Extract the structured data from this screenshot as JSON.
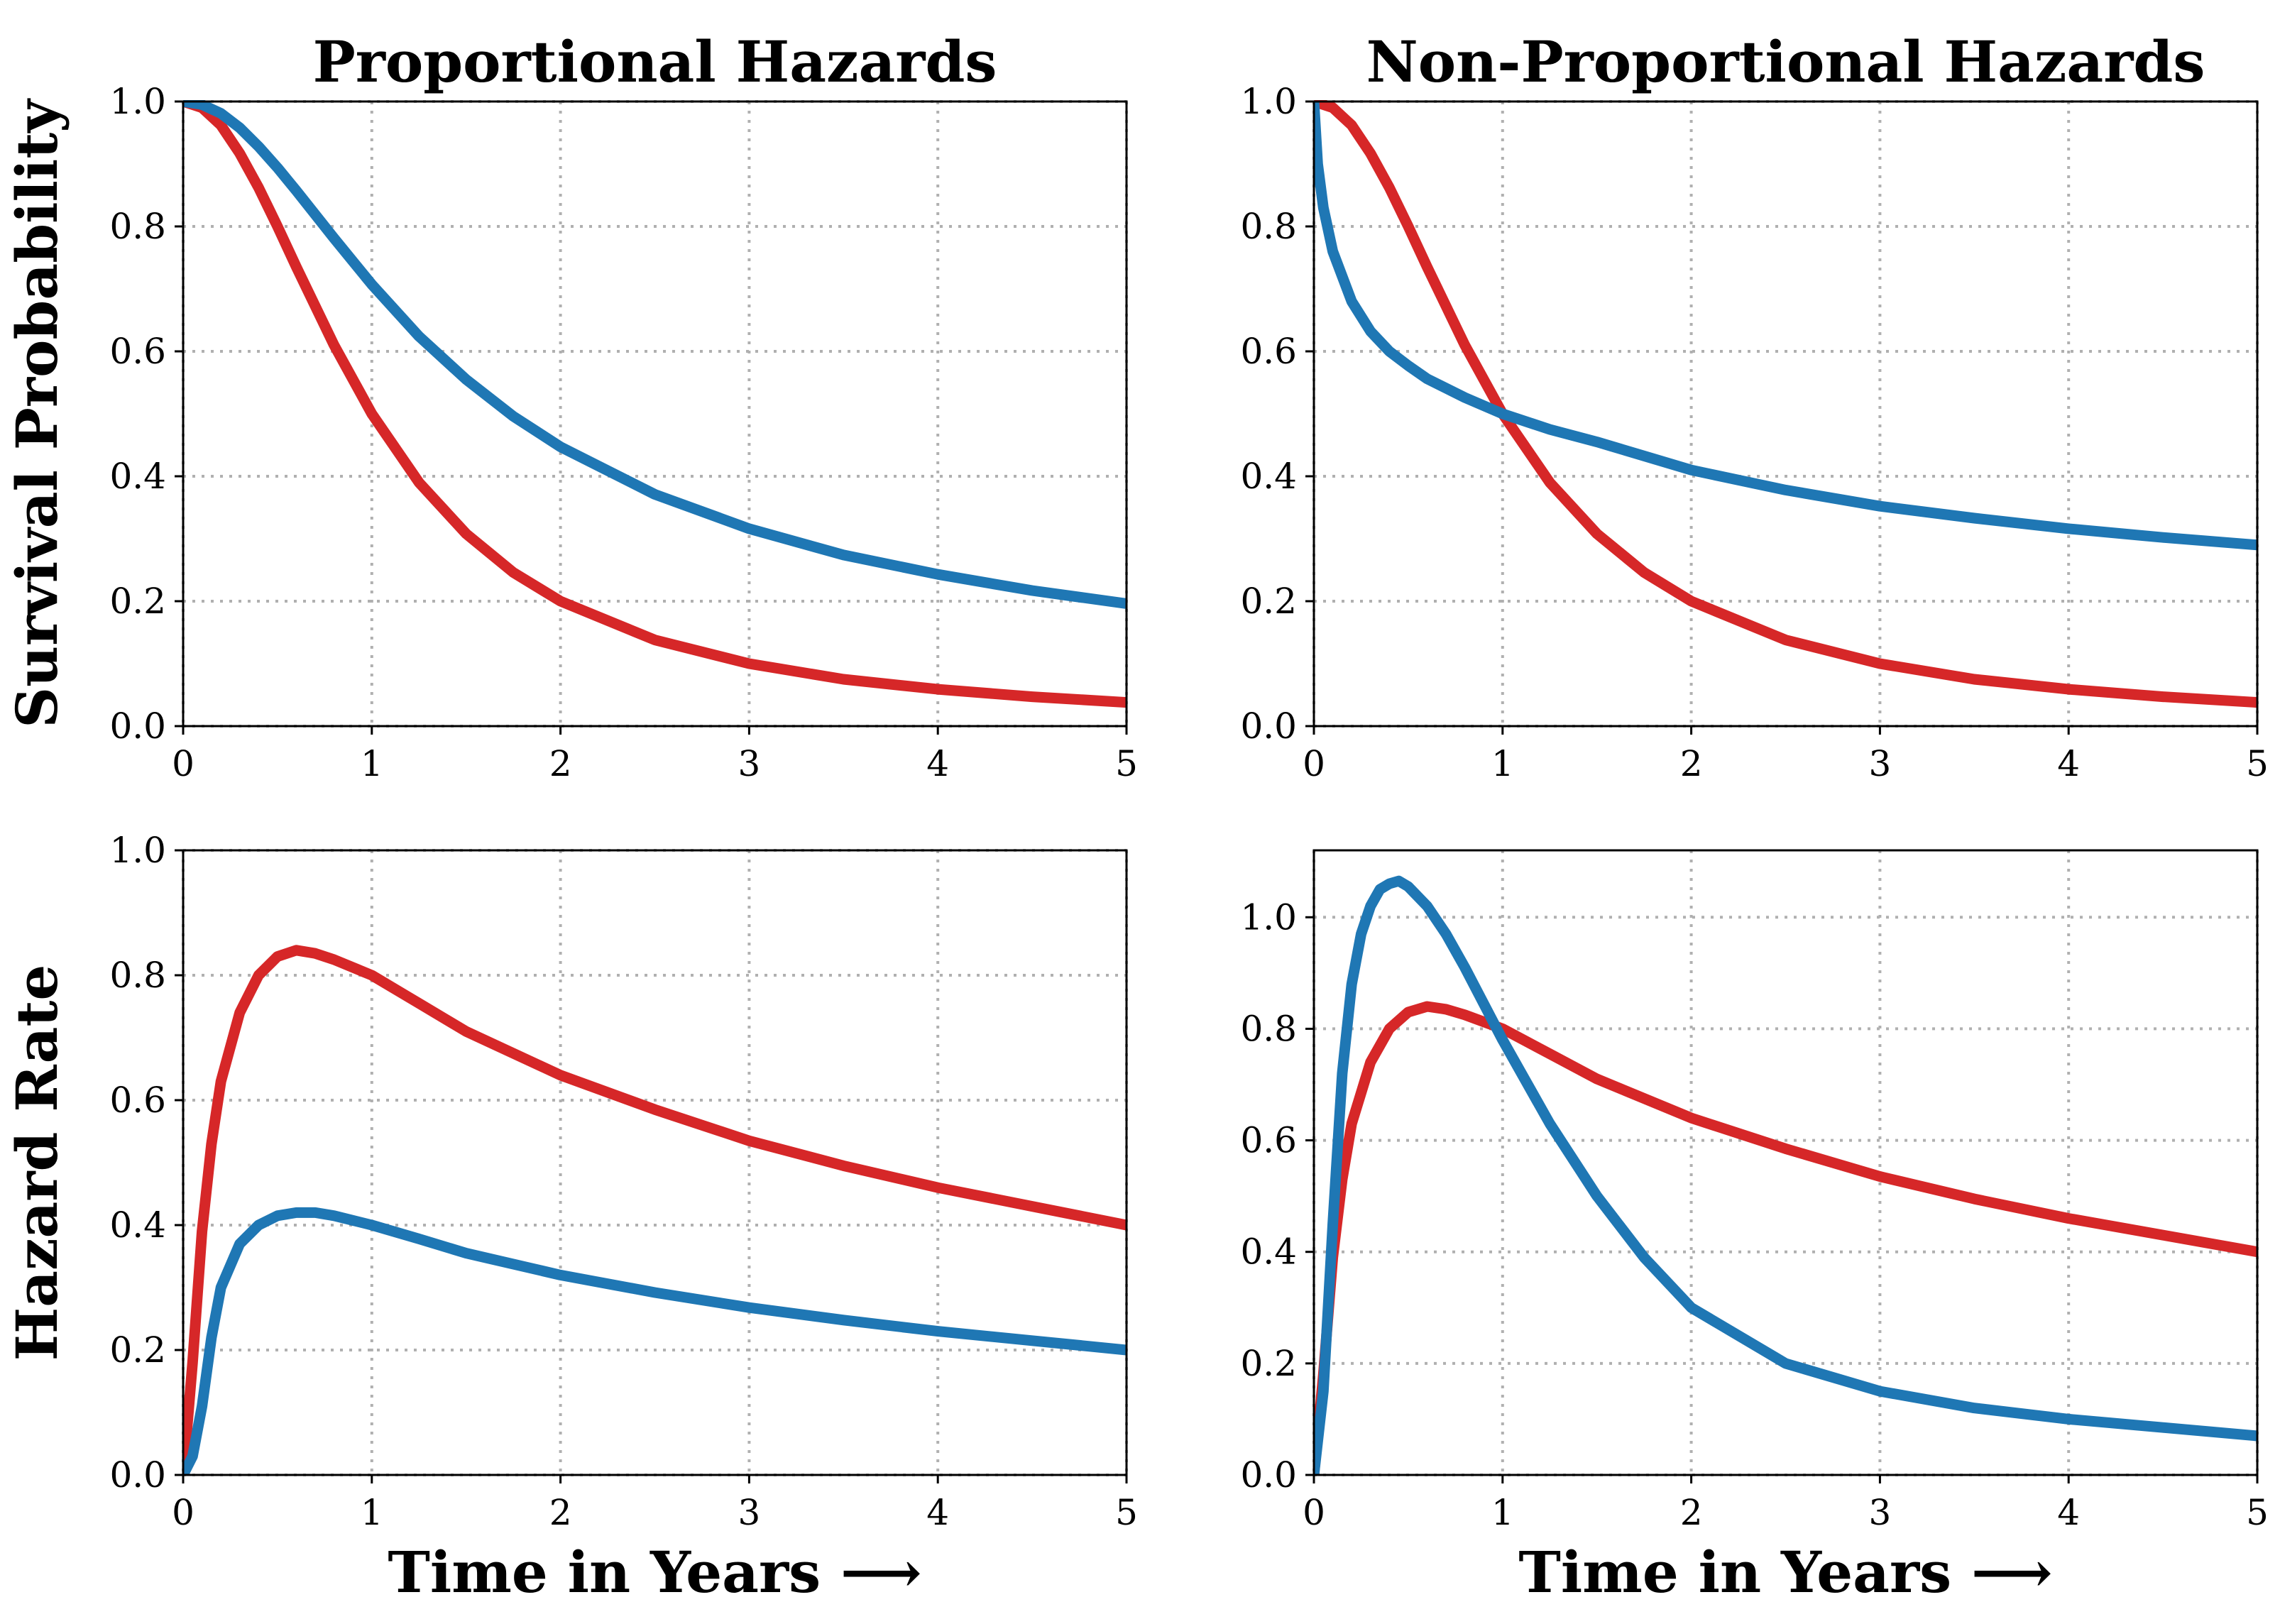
{
  "colors": {
    "red": "#d62728",
    "blue": "#1f77b4",
    "grid": "#b0b0b0"
  },
  "figure": {
    "xlabel": "Time in Years ⟶"
  },
  "chart_data": [
    {
      "id": "ph-survival",
      "type": "line",
      "title": "Proportional Hazards",
      "xlabel": "",
      "ylabel": "Survival Probability",
      "xlim": [
        0,
        5
      ],
      "ylim": [
        0,
        1.0
      ],
      "xticks": [
        0,
        1,
        2,
        3,
        4,
        5
      ],
      "yticks": [
        0.0,
        0.2,
        0.4,
        0.6,
        0.8,
        1.0
      ],
      "xtick_labels": [
        "0",
        "1",
        "2",
        "3",
        "4",
        "5"
      ],
      "ytick_labels": [
        "0.0",
        "0.2",
        "0.4",
        "0.6",
        "0.8",
        "1.0"
      ],
      "grid": true,
      "series": [
        {
          "name": "red",
          "color": "#d62728",
          "x": [
            0,
            0.1,
            0.2,
            0.3,
            0.4,
            0.5,
            0.6,
            0.8,
            1.0,
            1.25,
            1.5,
            1.75,
            2.0,
            2.5,
            3.0,
            3.5,
            4.0,
            4.5,
            5.0
          ],
          "y": [
            1.0,
            0.99,
            0.962,
            0.917,
            0.862,
            0.8,
            0.735,
            0.61,
            0.5,
            0.39,
            0.308,
            0.246,
            0.2,
            0.138,
            0.1,
            0.075,
            0.059,
            0.047,
            0.038
          ]
        },
        {
          "name": "blue",
          "color": "#1f77b4",
          "x": [
            0,
            0.1,
            0.2,
            0.3,
            0.4,
            0.5,
            0.6,
            0.8,
            1.0,
            1.25,
            1.5,
            1.75,
            2.0,
            2.5,
            3.0,
            3.5,
            4.0,
            4.5,
            5.0
          ],
          "y": [
            1.0,
            0.995,
            0.981,
            0.958,
            0.928,
            0.894,
            0.857,
            0.781,
            0.707,
            0.624,
            0.555,
            0.496,
            0.447,
            0.371,
            0.316,
            0.274,
            0.243,
            0.217,
            0.196
          ]
        }
      ]
    },
    {
      "id": "nph-survival",
      "type": "line",
      "title": "Non-Proportional Hazards",
      "xlabel": "",
      "ylabel": "",
      "xlim": [
        0,
        5
      ],
      "ylim": [
        0,
        1.0
      ],
      "xticks": [
        0,
        1,
        2,
        3,
        4,
        5
      ],
      "yticks": [
        0.0,
        0.2,
        0.4,
        0.6,
        0.8,
        1.0
      ],
      "xtick_labels": [
        "0",
        "1",
        "2",
        "3",
        "4",
        "5"
      ],
      "ytick_labels": [
        "0.0",
        "0.2",
        "0.4",
        "0.6",
        "0.8",
        "1.0"
      ],
      "grid": true,
      "series": [
        {
          "name": "red",
          "color": "#d62728",
          "x": [
            0,
            0.1,
            0.2,
            0.3,
            0.4,
            0.5,
            0.6,
            0.8,
            1.0,
            1.25,
            1.5,
            1.75,
            2.0,
            2.5,
            3.0,
            3.5,
            4.0,
            4.5,
            5.0
          ],
          "y": [
            1.0,
            0.99,
            0.962,
            0.917,
            0.862,
            0.8,
            0.735,
            0.61,
            0.5,
            0.39,
            0.308,
            0.246,
            0.2,
            0.138,
            0.1,
            0.075,
            0.059,
            0.047,
            0.038
          ]
        },
        {
          "name": "blue",
          "color": "#1f77b4",
          "x": [
            0,
            0.02,
            0.05,
            0.1,
            0.2,
            0.3,
            0.4,
            0.5,
            0.6,
            0.8,
            1.0,
            1.25,
            1.5,
            2.0,
            2.5,
            3.0,
            3.5,
            4.0,
            4.5,
            5.0
          ],
          "y": [
            1.0,
            0.9,
            0.83,
            0.76,
            0.68,
            0.632,
            0.6,
            0.577,
            0.556,
            0.526,
            0.5,
            0.475,
            0.455,
            0.41,
            0.378,
            0.352,
            0.333,
            0.316,
            0.302,
            0.29
          ]
        }
      ]
    },
    {
      "id": "ph-hazard",
      "type": "line",
      "title": "",
      "xlabel": "Time in Years ⟶",
      "ylabel": "Hazard Rate",
      "xlim": [
        0,
        5
      ],
      "ylim": [
        0,
        1.0
      ],
      "xticks": [
        0,
        1,
        2,
        3,
        4,
        5
      ],
      "yticks": [
        0.0,
        0.2,
        0.4,
        0.6,
        0.8,
        1.0
      ],
      "xtick_labels": [
        "0",
        "1",
        "2",
        "3",
        "4",
        "5"
      ],
      "ytick_labels": [
        "0.0",
        "0.2",
        "0.4",
        "0.6",
        "0.8",
        "1.0"
      ],
      "grid": true,
      "series": [
        {
          "name": "red",
          "color": "#d62728",
          "x": [
            0,
            0.05,
            0.1,
            0.15,
            0.2,
            0.3,
            0.4,
            0.5,
            0.6,
            0.7,
            0.8,
            1.0,
            1.25,
            1.5,
            2.0,
            2.5,
            3.0,
            3.5,
            4.0,
            4.5,
            5.0
          ],
          "y": [
            0.0,
            0.18,
            0.39,
            0.53,
            0.63,
            0.74,
            0.8,
            0.83,
            0.84,
            0.835,
            0.825,
            0.8,
            0.755,
            0.71,
            0.64,
            0.585,
            0.535,
            0.495,
            0.46,
            0.43,
            0.4
          ]
        },
        {
          "name": "blue",
          "color": "#1f77b4",
          "x": [
            0,
            0.05,
            0.1,
            0.15,
            0.2,
            0.3,
            0.4,
            0.5,
            0.6,
            0.7,
            0.8,
            1.0,
            1.25,
            1.5,
            2.0,
            2.5,
            3.0,
            3.5,
            4.0,
            4.5,
            5.0
          ],
          "y": [
            0.0,
            0.03,
            0.11,
            0.22,
            0.3,
            0.37,
            0.4,
            0.415,
            0.42,
            0.42,
            0.415,
            0.4,
            0.378,
            0.355,
            0.32,
            0.292,
            0.268,
            0.248,
            0.23,
            0.215,
            0.2
          ]
        }
      ]
    },
    {
      "id": "nph-hazard",
      "type": "line",
      "title": "",
      "xlabel": "Time in Years ⟶",
      "ylabel": "",
      "xlim": [
        0,
        5
      ],
      "ylim": [
        0,
        1.12
      ],
      "xticks": [
        0,
        1,
        2,
        3,
        4,
        5
      ],
      "yticks": [
        0.0,
        0.2,
        0.4,
        0.6,
        0.8,
        1.0
      ],
      "xtick_labels": [
        "0",
        "1",
        "2",
        "3",
        "4",
        "5"
      ],
      "ytick_labels": [
        "0.0",
        "0.2",
        "0.4",
        "0.6",
        "0.8",
        "1.0"
      ],
      "grid": true,
      "series": [
        {
          "name": "red",
          "color": "#d62728",
          "x": [
            0,
            0.05,
            0.1,
            0.15,
            0.2,
            0.3,
            0.4,
            0.5,
            0.6,
            0.7,
            0.8,
            1.0,
            1.25,
            1.5,
            2.0,
            2.5,
            3.0,
            3.5,
            4.0,
            4.5,
            5.0
          ],
          "y": [
            0.0,
            0.18,
            0.39,
            0.53,
            0.63,
            0.74,
            0.8,
            0.83,
            0.84,
            0.835,
            0.825,
            0.8,
            0.755,
            0.71,
            0.64,
            0.585,
            0.535,
            0.495,
            0.46,
            0.43,
            0.4
          ]
        },
        {
          "name": "blue",
          "color": "#1f77b4",
          "x": [
            0,
            0.05,
            0.1,
            0.15,
            0.2,
            0.25,
            0.3,
            0.35,
            0.4,
            0.45,
            0.5,
            0.6,
            0.7,
            0.8,
            1.0,
            1.25,
            1.5,
            1.75,
            2.0,
            2.5,
            3.0,
            3.5,
            4.0,
            4.5,
            5.0
          ],
          "y": [
            0.0,
            0.15,
            0.45,
            0.72,
            0.88,
            0.97,
            1.02,
            1.05,
            1.06,
            1.065,
            1.055,
            1.02,
            0.97,
            0.91,
            0.78,
            0.63,
            0.5,
            0.39,
            0.3,
            0.2,
            0.15,
            0.12,
            0.1,
            0.085,
            0.07
          ]
        }
      ]
    }
  ]
}
